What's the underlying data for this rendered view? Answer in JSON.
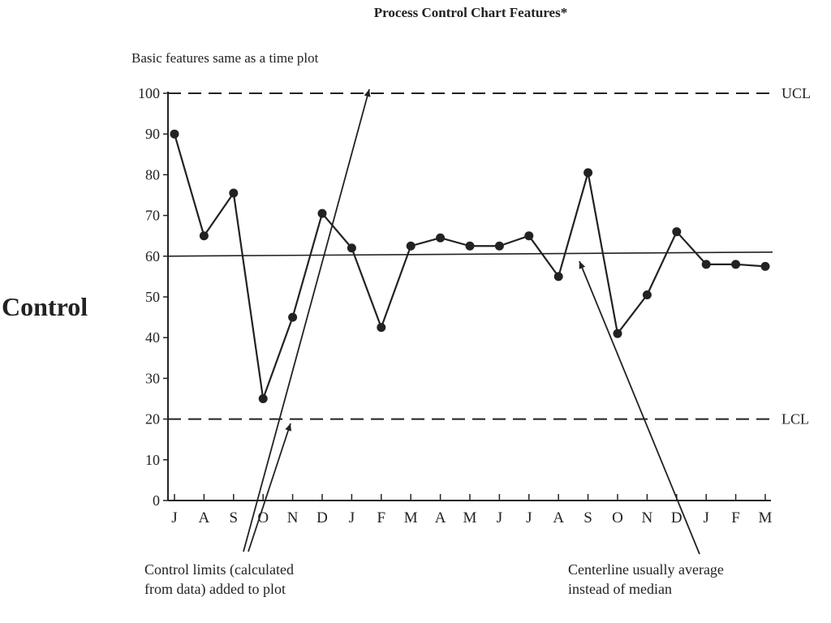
{
  "chart_data": {
    "type": "line",
    "title": "Process Control Chart Features*",
    "subtitle": "Basic features same as a time plot",
    "side_label": "Control",
    "categories": [
      "J",
      "A",
      "S",
      "O",
      "N",
      "D",
      "J",
      "F",
      "M",
      "A",
      "M",
      "J",
      "J",
      "A",
      "S",
      "O",
      "N",
      "D",
      "J",
      "F",
      "M"
    ],
    "series": [
      {
        "values": [
          90,
          65,
          75.5,
          25,
          45,
          70.5,
          62,
          42.5,
          62.5,
          64.5,
          62.5,
          62.5,
          65,
          55,
          80.5,
          41,
          50.5,
          66,
          58,
          58,
          57.5
        ]
      }
    ],
    "ylim": [
      0,
      100
    ],
    "yticks": [
      0,
      10,
      20,
      30,
      40,
      50,
      60,
      70,
      80,
      90,
      100
    ],
    "control_limits": {
      "ucl": 100,
      "ucl_label": "UCL",
      "lcl": 20,
      "lcl_label": "LCL",
      "centerline": 60
    },
    "annotations": [
      "Control limits (calculated\nfrom data) added to plot",
      "Centerline usually average\ninstead of median"
    ],
    "grid": false,
    "legend": "none"
  }
}
